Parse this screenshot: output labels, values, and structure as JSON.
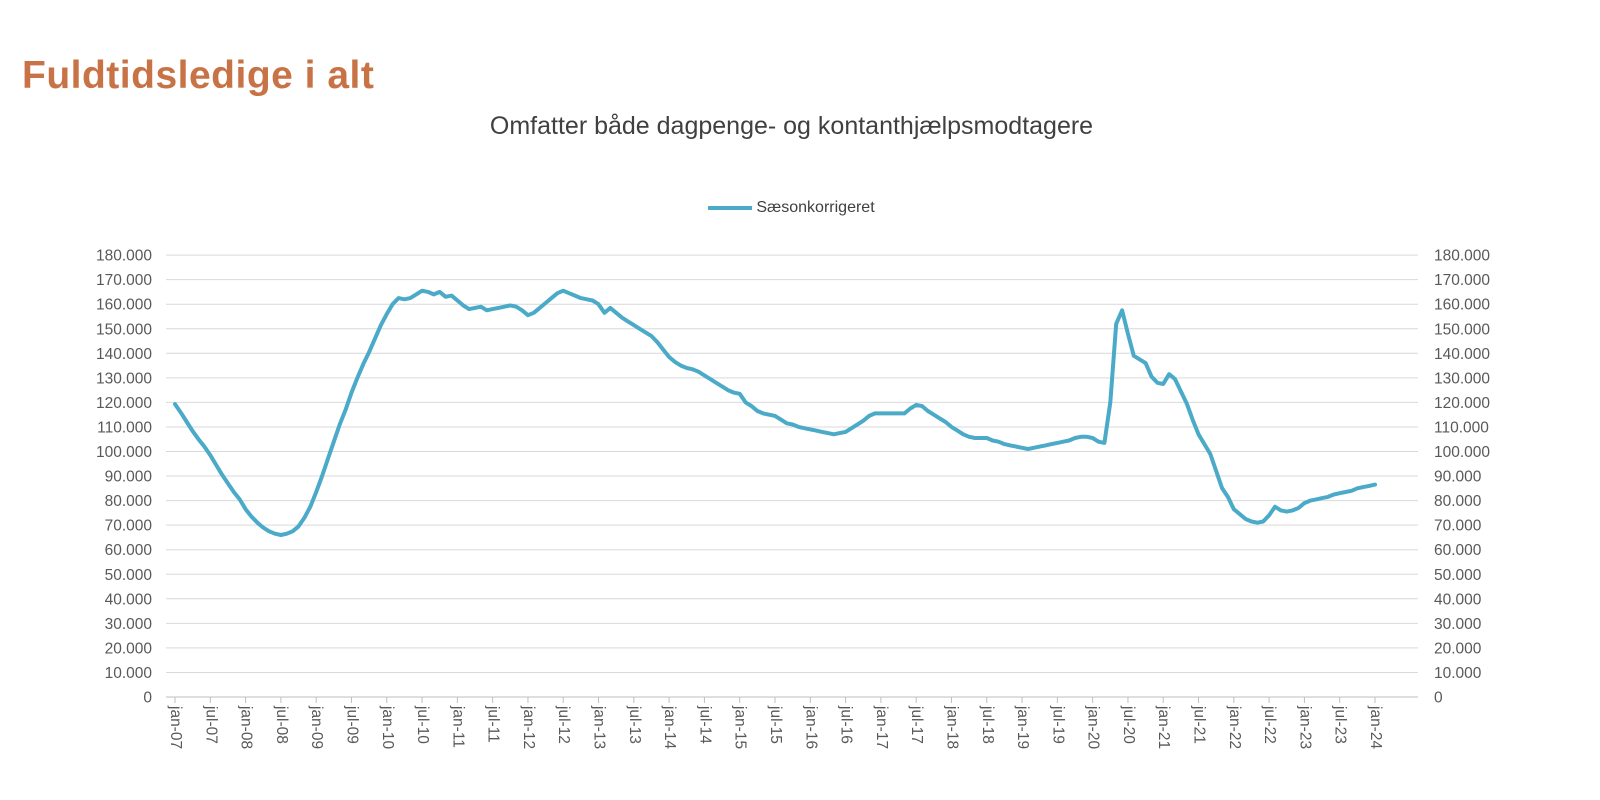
{
  "page": {
    "title": "Fuldtidsledige i alt"
  },
  "chart": {
    "subtitle": "Omfatter både dagpenge- og kontanthjælpsmodtagere",
    "legend": [
      {
        "label": "Sæsonkorrigeret",
        "color": "#4BAAC8"
      }
    ]
  },
  "colors": {
    "title_text": "#C87346",
    "subtitle_text": "#404040",
    "legend_text": "#404040",
    "axis_text": "#595959",
    "gridline": "#D9D9D9",
    "axis_line": "#BFBFBF",
    "series_line": "#4BAAC8"
  },
  "chart_data": {
    "type": "line",
    "title": "Omfatter både dagpenge- og kontanthjælpsmodtagere",
    "legend_position": "top-center",
    "grid": true,
    "ylim": [
      0,
      180000
    ],
    "y_tick_step": 10000,
    "y_axis_sides": [
      "left",
      "right"
    ],
    "y_tick_labels": [
      "0",
      "10.000",
      "20.000",
      "30.000",
      "40.000",
      "50.000",
      "60.000",
      "70.000",
      "80.000",
      "90.000",
      "100.000",
      "110.000",
      "120.000",
      "130.000",
      "140.000",
      "150.000",
      "160.000",
      "170.000",
      "180.000"
    ],
    "x_unit": "month",
    "x_range": [
      "jan-07",
      "jan-24"
    ],
    "x_tick_every_months": 6,
    "x_tick_labels": [
      "jan-07",
      "jul-07",
      "jan-08",
      "jul-08",
      "jan-09",
      "jul-09",
      "jan-10",
      "jul-10",
      "jan-11",
      "jul-11",
      "jan-12",
      "jul-12",
      "jan-13",
      "jul-13",
      "jan-14",
      "jul-14",
      "jan-15",
      "jul-15",
      "jan-16",
      "jul-16",
      "jan-17",
      "jul-17",
      "jan-18",
      "jul-18",
      "jan-19",
      "jul-19",
      "jan-20",
      "jul-20",
      "jan-21",
      "jul-21",
      "jan-22",
      "jul-22",
      "jan-23",
      "jul-23",
      "jan-24"
    ],
    "series": [
      {
        "name": "Sæsonkorrigeret",
        "color": "#4BAAC8",
        "points_note": "monthly values, jan-07 through jan-24",
        "values": [
          119300,
          115800,
          112000,
          108300,
          105000,
          102000,
          98500,
          94500,
          90500,
          87000,
          83500,
          80500,
          76500,
          73500,
          71000,
          69000,
          67500,
          66500,
          66000,
          66500,
          67500,
          69500,
          73000,
          77500,
          83500,
          90000,
          97000,
          104000,
          111000,
          117000,
          124000,
          130000,
          135500,
          140500,
          146000,
          151500,
          156000,
          160000,
          162500,
          162000,
          162500,
          164000,
          165500,
          165000,
          164000,
          165000,
          163000,
          163500,
          161500,
          159500,
          158000,
          158500,
          159000,
          157500,
          158000,
          158500,
          159000,
          159500,
          159000,
          157500,
          155500,
          156500,
          158500,
          160500,
          162500,
          164500,
          165500,
          164500,
          163500,
          162500,
          162000,
          161500,
          160000,
          156500,
          158500,
          156500,
          154500,
          153000,
          151500,
          150000,
          148500,
          147000,
          144500,
          141500,
          138500,
          136500,
          135000,
          134000,
          133500,
          132500,
          131000,
          129500,
          128000,
          126500,
          125000,
          124000,
          123500,
          120000,
          118500,
          116500,
          115500,
          115000,
          114500,
          113000,
          111500,
          111000,
          110000,
          109500,
          109000,
          108500,
          108000,
          107500,
          107000,
          107500,
          108000,
          109500,
          111000,
          112500,
          114500,
          115500,
          115500,
          115500,
          115500,
          115500,
          115500,
          117500,
          119000,
          118500,
          116500,
          115000,
          113500,
          112000,
          110000,
          108500,
          107000,
          106000,
          105500,
          105500,
          105500,
          104500,
          104000,
          103000,
          102500,
          102000,
          101500,
          101000,
          101500,
          102000,
          102500,
          103000,
          103500,
          104000,
          104500,
          105500,
          106000,
          106000,
          105500,
          104000,
          103500,
          120000,
          152000,
          157500,
          148000,
          139000,
          137500,
          136000,
          130500,
          128000,
          127500,
          131500,
          129500,
          124500,
          119500,
          113000,
          107000,
          103000,
          99000,
          92000,
          85000,
          81500,
          76500,
          74500,
          72500,
          71500,
          71000,
          71500,
          74000,
          77500,
          76000,
          75500,
          76000,
          77000,
          79000,
          80000,
          80500,
          81000,
          81500,
          82500,
          83000,
          83500,
          84000,
          85000,
          85500,
          86000,
          86500
        ]
      }
    ]
  }
}
